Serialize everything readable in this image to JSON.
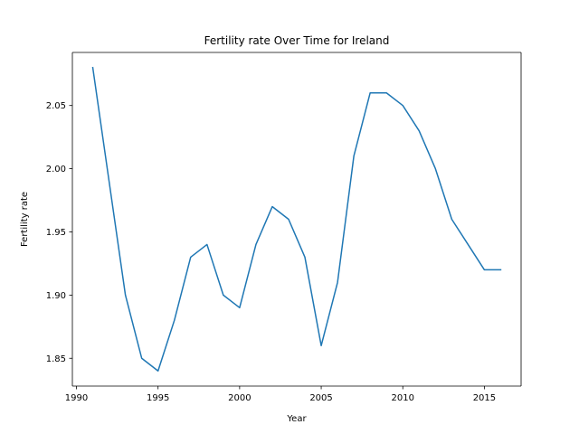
{
  "chart_data": {
    "type": "line",
    "title": "Fertility rate Over Time for Ireland",
    "xlabel": "Year",
    "ylabel": "Fertility rate",
    "xlim": [
      1989.75,
      2017.25
    ],
    "ylim": [
      1.828,
      2.092
    ],
    "xticks": [
      1990,
      1995,
      2000,
      2005,
      2010,
      2015
    ],
    "yticks": [
      1.85,
      1.9,
      1.95,
      2.0,
      2.05
    ],
    "xtick_labels": [
      "1990",
      "1995",
      "2000",
      "2005",
      "2010",
      "2015"
    ],
    "ytick_labels": [
      "1.85",
      "1.90",
      "1.95",
      "2.00",
      "2.05"
    ],
    "grid": false,
    "series": [
      {
        "name": "Fertility rate",
        "color": "#1f77b4",
        "x": [
          1991,
          1992,
          1993,
          1994,
          1995,
          1996,
          1997,
          1998,
          1999,
          2000,
          2001,
          2002,
          2003,
          2004,
          2005,
          2006,
          2007,
          2008,
          2009,
          2010,
          2011,
          2012,
          2013,
          2014,
          2015,
          2016
        ],
        "y": [
          2.08,
          1.99,
          1.9,
          1.85,
          1.84,
          1.88,
          1.93,
          1.94,
          1.9,
          1.89,
          1.94,
          1.97,
          1.96,
          1.93,
          1.86,
          1.91,
          2.01,
          2.06,
          2.06,
          2.05,
          2.03,
          2.0,
          1.96,
          1.94,
          1.92,
          1.92
        ]
      }
    ]
  }
}
